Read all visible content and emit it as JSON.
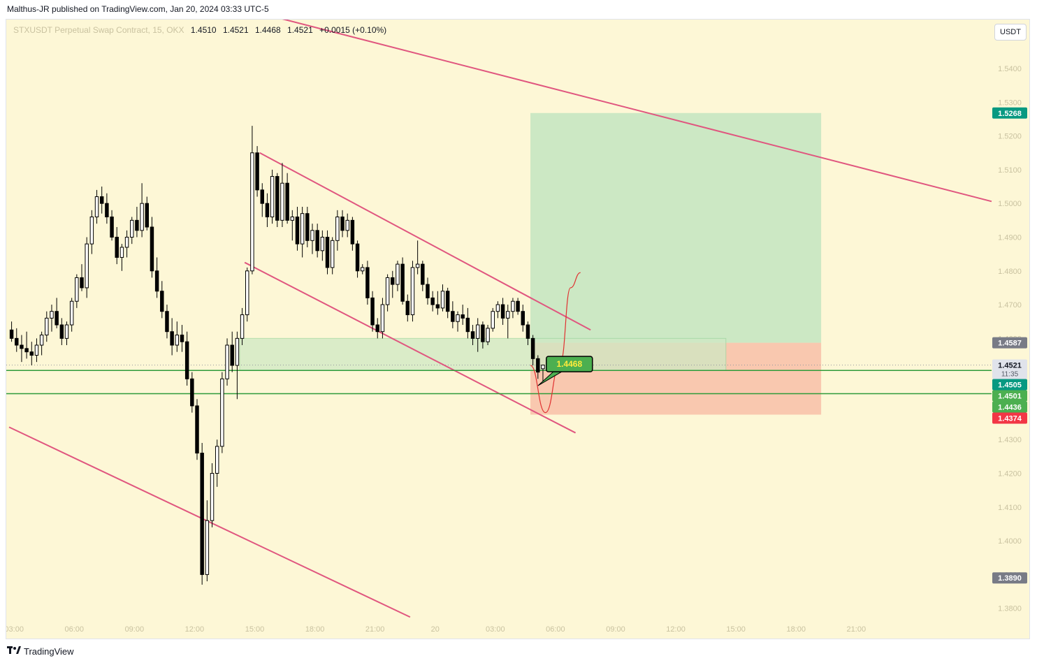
{
  "header": {
    "text": "Malthus-JR published on TradingView.com, Jan 20, 2024 03:33 UTC-5"
  },
  "legend": {
    "symbol": "STXUSDT Perpetual Swap Contract, 15, OKX",
    "open": "1.4510",
    "high": "1.4521",
    "low": "1.4468",
    "close": "1.4521",
    "change": "+0.0015 (+0.10%)"
  },
  "currency_button": "USDT",
  "footer": {
    "brand_icon": "tradingview-logo-icon",
    "brand": "TradingView"
  },
  "colors": {
    "background": "#fdf7d6",
    "trendline": "#e0567f",
    "horizontal_line": "#2e9b3a",
    "target_zone": "#bfe3bf",
    "stop_zone": "#f7b8a2",
    "entry_zone": "#cfe9c4",
    "bull_candle": "#ffffff",
    "bear_candle": "#000000",
    "forecast_curve": "#e03030"
  },
  "chart_data": {
    "type": "candlestick",
    "timeframe": "15",
    "x_ticks": [
      "03:00",
      "06:00",
      "09:00",
      "12:00",
      "15:00",
      "18:00",
      "21:00",
      "20",
      "03:00",
      "06:00",
      "09:00",
      "12:00",
      "15:00",
      "18:00",
      "21:00"
    ],
    "y_ticks": [
      "1.5400",
      "1.5300",
      "1.5200",
      "1.5100",
      "1.5000",
      "1.4900",
      "1.4800",
      "1.4700",
      "1.4600",
      "1.4500",
      "1.4400",
      "1.4300",
      "1.4200",
      "1.4100",
      "1.4000",
      "1.3900",
      "1.3800"
    ],
    "ylim": [
      1.376,
      1.5545
    ],
    "xlim_bars": [
      0,
      196
    ],
    "price_tags": [
      {
        "label": "1.5268",
        "value": 1.5268,
        "color": "#089981"
      },
      {
        "label": "1.4587",
        "value": 1.4587,
        "color": "#787b86"
      },
      {
        "label": "1.4521",
        "sublabel": "11:35",
        "value": 1.4521,
        "color": "#e0e3eb",
        "text_color": "#131722"
      },
      {
        "label": "1.4505",
        "value": 1.4505,
        "color": "#089981"
      },
      {
        "label": "1.4501",
        "value": 1.4501,
        "color": "#4caf50"
      },
      {
        "label": "1.4436",
        "value": 1.4436,
        "color": "#4caf50"
      },
      {
        "label": "1.4374",
        "value": 1.4374,
        "color": "#f23645"
      },
      {
        "label": "1.3890",
        "value": 1.389,
        "color": "#787b86"
      }
    ],
    "annotation": {
      "label": "1.4468",
      "value": 1.4468,
      "bar": 105
    },
    "horizontal_lines": [
      1.4505,
      1.4436
    ],
    "current_price": 1.4521,
    "entry_zone": {
      "from_bar": 46,
      "to_bar": 143,
      "low": 1.4505,
      "high": 1.46
    },
    "position": {
      "from_bar": 104,
      "to_bar": 162,
      "entry": 1.4587,
      "target": 1.5268,
      "stop": 1.4374
    },
    "trendlines": [
      {
        "x1": 49,
        "y1": 1.5568,
        "x2": 196,
        "y2": 1.5006
      },
      {
        "x1": 50,
        "y1": 1.515,
        "x2": 116,
        "y2": 1.4625
      },
      {
        "x1": 47,
        "y1": 1.4825,
        "x2": 113,
        "y2": 1.432
      },
      {
        "x1": 0,
        "y1": 1.4337,
        "x2": 80,
        "y2": 1.3774
      }
    ],
    "forecast_curve": [
      [
        104,
        1.452
      ],
      [
        107,
        1.438
      ],
      [
        110,
        1.453
      ],
      [
        112,
        1.475
      ],
      [
        114,
        1.4795
      ]
    ],
    "candles": [
      {
        "o": 1.4625,
        "h": 1.465,
        "l": 1.459,
        "c": 1.46
      },
      {
        "o": 1.46,
        "h": 1.463,
        "l": 1.456,
        "c": 1.458
      },
      {
        "o": 1.458,
        "h": 1.461,
        "l": 1.453,
        "c": 1.457
      },
      {
        "o": 1.457,
        "h": 1.462,
        "l": 1.454,
        "c": 1.456
      },
      {
        "o": 1.456,
        "h": 1.459,
        "l": 1.452,
        "c": 1.455
      },
      {
        "o": 1.455,
        "h": 1.46,
        "l": 1.453,
        "c": 1.458
      },
      {
        "o": 1.458,
        "h": 1.462,
        "l": 1.455,
        "c": 1.461
      },
      {
        "o": 1.461,
        "h": 1.468,
        "l": 1.459,
        "c": 1.466
      },
      {
        "o": 1.466,
        "h": 1.47,
        "l": 1.462,
        "c": 1.468
      },
      {
        "o": 1.468,
        "h": 1.472,
        "l": 1.463,
        "c": 1.464
      },
      {
        "o": 1.464,
        "h": 1.466,
        "l": 1.458,
        "c": 1.46
      },
      {
        "o": 1.46,
        "h": 1.465,
        "l": 1.458,
        "c": 1.464
      },
      {
        "o": 1.464,
        "h": 1.472,
        "l": 1.462,
        "c": 1.471
      },
      {
        "o": 1.471,
        "h": 1.479,
        "l": 1.469,
        "c": 1.478
      },
      {
        "o": 1.478,
        "h": 1.482,
        "l": 1.474,
        "c": 1.475
      },
      {
        "o": 1.475,
        "h": 1.49,
        "l": 1.472,
        "c": 1.488
      },
      {
        "o": 1.488,
        "h": 1.498,
        "l": 1.485,
        "c": 1.496
      },
      {
        "o": 1.496,
        "h": 1.504,
        "l": 1.494,
        "c": 1.502
      },
      {
        "o": 1.502,
        "h": 1.505,
        "l": 1.497,
        "c": 1.5
      },
      {
        "o": 1.5,
        "h": 1.503,
        "l": 1.494,
        "c": 1.496
      },
      {
        "o": 1.496,
        "h": 1.498,
        "l": 1.489,
        "c": 1.49
      },
      {
        "o": 1.49,
        "h": 1.493,
        "l": 1.482,
        "c": 1.484
      },
      {
        "o": 1.484,
        "h": 1.488,
        "l": 1.48,
        "c": 1.487
      },
      {
        "o": 1.487,
        "h": 1.492,
        "l": 1.484,
        "c": 1.49
      },
      {
        "o": 1.49,
        "h": 1.496,
        "l": 1.488,
        "c": 1.495
      },
      {
        "o": 1.495,
        "h": 1.499,
        "l": 1.49,
        "c": 1.492
      },
      {
        "o": 1.492,
        "h": 1.506,
        "l": 1.49,
        "c": 1.5
      },
      {
        "o": 1.5,
        "h": 1.502,
        "l": 1.492,
        "c": 1.493
      },
      {
        "o": 1.493,
        "h": 1.496,
        "l": 1.478,
        "c": 1.48
      },
      {
        "o": 1.48,
        "h": 1.484,
        "l": 1.472,
        "c": 1.474
      },
      {
        "o": 1.474,
        "h": 1.477,
        "l": 1.466,
        "c": 1.468
      },
      {
        "o": 1.468,
        "h": 1.47,
        "l": 1.46,
        "c": 1.462
      },
      {
        "o": 1.462,
        "h": 1.466,
        "l": 1.455,
        "c": 1.458
      },
      {
        "o": 1.458,
        "h": 1.465,
        "l": 1.456,
        "c": 1.461
      },
      {
        "o": 1.461,
        "h": 1.464,
        "l": 1.456,
        "c": 1.459
      },
      {
        "o": 1.459,
        "h": 1.462,
        "l": 1.446,
        "c": 1.448
      },
      {
        "o": 1.448,
        "h": 1.45,
        "l": 1.438,
        "c": 1.44
      },
      {
        "o": 1.44,
        "h": 1.442,
        "l": 1.424,
        "c": 1.426
      },
      {
        "o": 1.426,
        "h": 1.429,
        "l": 1.387,
        "c": 1.39
      },
      {
        "o": 1.39,
        "h": 1.412,
        "l": 1.388,
        "c": 1.406
      },
      {
        "o": 1.406,
        "h": 1.423,
        "l": 1.404,
        "c": 1.42
      },
      {
        "o": 1.42,
        "h": 1.43,
        "l": 1.416,
        "c": 1.428
      },
      {
        "o": 1.428,
        "h": 1.45,
        "l": 1.426,
        "c": 1.448
      },
      {
        "o": 1.448,
        "h": 1.46,
        "l": 1.446,
        "c": 1.458
      },
      {
        "o": 1.458,
        "h": 1.462,
        "l": 1.45,
        "c": 1.452
      },
      {
        "o": 1.452,
        "h": 1.462,
        "l": 1.442,
        "c": 1.46
      },
      {
        "o": 1.46,
        "h": 1.469,
        "l": 1.458,
        "c": 1.467
      },
      {
        "o": 1.467,
        "h": 1.481,
        "l": 1.465,
        "c": 1.48
      },
      {
        "o": 1.48,
        "h": 1.523,
        "l": 1.479,
        "c": 1.515
      },
      {
        "o": 1.515,
        "h": 1.517,
        "l": 1.502,
        "c": 1.504
      },
      {
        "o": 1.504,
        "h": 1.506,
        "l": 1.496,
        "c": 1.5
      },
      {
        "o": 1.5,
        "h": 1.503,
        "l": 1.493,
        "c": 1.496
      },
      {
        "o": 1.496,
        "h": 1.51,
        "l": 1.494,
        "c": 1.508
      },
      {
        "o": 1.508,
        "h": 1.509,
        "l": 1.493,
        "c": 1.495
      },
      {
        "o": 1.495,
        "h": 1.512,
        "l": 1.493,
        "c": 1.506
      },
      {
        "o": 1.506,
        "h": 1.509,
        "l": 1.494,
        "c": 1.495
      },
      {
        "o": 1.495,
        "h": 1.498,
        "l": 1.489,
        "c": 1.496
      },
      {
        "o": 1.496,
        "h": 1.499,
        "l": 1.486,
        "c": 1.488
      },
      {
        "o": 1.488,
        "h": 1.499,
        "l": 1.484,
        "c": 1.497
      },
      {
        "o": 1.497,
        "h": 1.499,
        "l": 1.487,
        "c": 1.489
      },
      {
        "o": 1.489,
        "h": 1.494,
        "l": 1.485,
        "c": 1.492
      },
      {
        "o": 1.492,
        "h": 1.494,
        "l": 1.484,
        "c": 1.486
      },
      {
        "o": 1.486,
        "h": 1.492,
        "l": 1.483,
        "c": 1.49
      },
      {
        "o": 1.49,
        "h": 1.492,
        "l": 1.479,
        "c": 1.481
      },
      {
        "o": 1.481,
        "h": 1.49,
        "l": 1.479,
        "c": 1.489
      },
      {
        "o": 1.489,
        "h": 1.498,
        "l": 1.486,
        "c": 1.496
      },
      {
        "o": 1.496,
        "h": 1.498,
        "l": 1.49,
        "c": 1.492
      },
      {
        "o": 1.492,
        "h": 1.497,
        "l": 1.49,
        "c": 1.495
      },
      {
        "o": 1.495,
        "h": 1.496,
        "l": 1.486,
        "c": 1.488
      },
      {
        "o": 1.488,
        "h": 1.489,
        "l": 1.478,
        "c": 1.48
      },
      {
        "o": 1.48,
        "h": 1.482,
        "l": 1.479,
        "c": 1.481
      },
      {
        "o": 1.481,
        "h": 1.483,
        "l": 1.47,
        "c": 1.472
      },
      {
        "o": 1.472,
        "h": 1.474,
        "l": 1.462,
        "c": 1.464
      },
      {
        "o": 1.464,
        "h": 1.466,
        "l": 1.46,
        "c": 1.462
      },
      {
        "o": 1.462,
        "h": 1.472,
        "l": 1.46,
        "c": 1.47
      },
      {
        "o": 1.47,
        "h": 1.479,
        "l": 1.468,
        "c": 1.478
      },
      {
        "o": 1.478,
        "h": 1.48,
        "l": 1.472,
        "c": 1.476
      },
      {
        "o": 1.476,
        "h": 1.483,
        "l": 1.474,
        "c": 1.482
      },
      {
        "o": 1.482,
        "h": 1.484,
        "l": 1.47,
        "c": 1.471
      },
      {
        "o": 1.471,
        "h": 1.473,
        "l": 1.465,
        "c": 1.467
      },
      {
        "o": 1.467,
        "h": 1.483,
        "l": 1.465,
        "c": 1.481
      },
      {
        "o": 1.481,
        "h": 1.489,
        "l": 1.479,
        "c": 1.482
      },
      {
        "o": 1.482,
        "h": 1.483,
        "l": 1.474,
        "c": 1.476
      },
      {
        "o": 1.476,
        "h": 1.478,
        "l": 1.47,
        "c": 1.472
      },
      {
        "o": 1.472,
        "h": 1.474,
        "l": 1.468,
        "c": 1.47
      },
      {
        "o": 1.47,
        "h": 1.474,
        "l": 1.467,
        "c": 1.469
      },
      {
        "o": 1.469,
        "h": 1.476,
        "l": 1.468,
        "c": 1.474
      },
      {
        "o": 1.474,
        "h": 1.475,
        "l": 1.466,
        "c": 1.468
      },
      {
        "o": 1.468,
        "h": 1.471,
        "l": 1.463,
        "c": 1.465
      },
      {
        "o": 1.465,
        "h": 1.468,
        "l": 1.462,
        "c": 1.467
      },
      {
        "o": 1.467,
        "h": 1.47,
        "l": 1.464,
        "c": 1.466
      },
      {
        "o": 1.466,
        "h": 1.469,
        "l": 1.46,
        "c": 1.462
      },
      {
        "o": 1.462,
        "h": 1.464,
        "l": 1.458,
        "c": 1.46
      },
      {
        "o": 1.46,
        "h": 1.466,
        "l": 1.456,
        "c": 1.464
      },
      {
        "o": 1.464,
        "h": 1.465,
        "l": 1.457,
        "c": 1.459
      },
      {
        "o": 1.459,
        "h": 1.464,
        "l": 1.458,
        "c": 1.463
      },
      {
        "o": 1.463,
        "h": 1.469,
        "l": 1.462,
        "c": 1.468
      },
      {
        "o": 1.468,
        "h": 1.471,
        "l": 1.466,
        "c": 1.47
      },
      {
        "o": 1.47,
        "h": 1.472,
        "l": 1.464,
        "c": 1.466
      },
      {
        "o": 1.466,
        "h": 1.47,
        "l": 1.46,
        "c": 1.468
      },
      {
        "o": 1.468,
        "h": 1.472,
        "l": 1.466,
        "c": 1.471
      },
      {
        "o": 1.471,
        "h": 1.472,
        "l": 1.467,
        "c": 1.468
      },
      {
        "o": 1.468,
        "h": 1.47,
        "l": 1.462,
        "c": 1.464
      },
      {
        "o": 1.464,
        "h": 1.465,
        "l": 1.458,
        "c": 1.46
      },
      {
        "o": 1.46,
        "h": 1.461,
        "l": 1.452,
        "c": 1.454
      },
      {
        "o": 1.454,
        "h": 1.455,
        "l": 1.448,
        "c": 1.45
      },
      {
        "o": 1.451,
        "h": 1.4521,
        "l": 1.4468,
        "c": 1.4521
      }
    ]
  }
}
